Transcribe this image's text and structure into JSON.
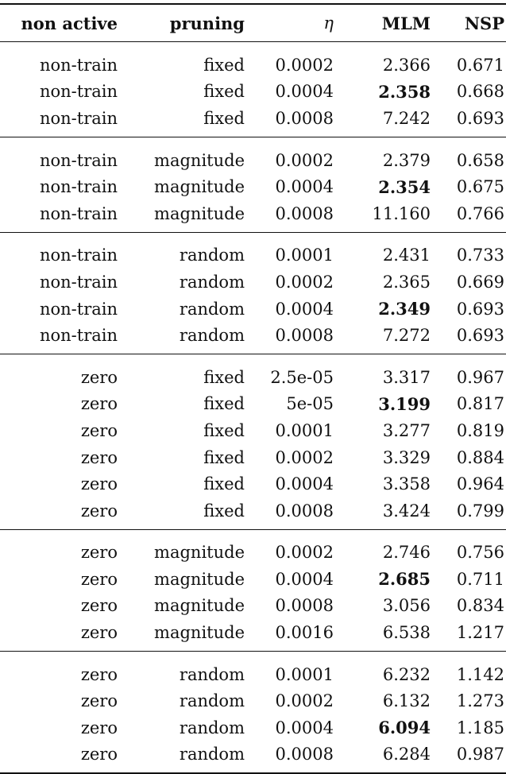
{
  "headers": [
    "non active",
    "pruning",
    "η",
    "MLM",
    "NSP"
  ],
  "groups": [
    {
      "rows": [
        [
          "non-train",
          "fixed",
          "0.0002",
          "2.366",
          "0.671"
        ],
        [
          "non-train",
          "fixed",
          "0.0004",
          "2.358",
          "0.668"
        ],
        [
          "non-train",
          "fixed",
          "0.0008",
          "7.242",
          "0.693"
        ]
      ],
      "best_row": 1
    },
    {
      "rows": [
        [
          "non-train",
          "magnitude",
          "0.0002",
          "2.379",
          "0.658"
        ],
        [
          "non-train",
          "magnitude",
          "0.0004",
          "2.354",
          "0.675"
        ],
        [
          "non-train",
          "magnitude",
          "0.0008",
          "11.160",
          "0.766"
        ]
      ],
      "best_row": 1
    },
    {
      "rows": [
        [
          "non-train",
          "random",
          "0.0001",
          "2.431",
          "0.733"
        ],
        [
          "non-train",
          "random",
          "0.0002",
          "2.365",
          "0.669"
        ],
        [
          "non-train",
          "random",
          "0.0004",
          "2.349",
          "0.693"
        ],
        [
          "non-train",
          "random",
          "0.0008",
          "7.272",
          "0.693"
        ]
      ],
      "best_row": 2
    },
    {
      "rows": [
        [
          "zero",
          "fixed",
          "2.5e-05",
          "3.317",
          "0.967"
        ],
        [
          "zero",
          "fixed",
          "5e-05",
          "3.199",
          "0.817"
        ],
        [
          "zero",
          "fixed",
          "0.0001",
          "3.277",
          "0.819"
        ],
        [
          "zero",
          "fixed",
          "0.0002",
          "3.329",
          "0.884"
        ],
        [
          "zero",
          "fixed",
          "0.0004",
          "3.358",
          "0.964"
        ],
        [
          "zero",
          "fixed",
          "0.0008",
          "3.424",
          "0.799"
        ]
      ],
      "best_row": 1
    },
    {
      "rows": [
        [
          "zero",
          "magnitude",
          "0.0002",
          "2.746",
          "0.756"
        ],
        [
          "zero",
          "magnitude",
          "0.0004",
          "2.685",
          "0.711"
        ],
        [
          "zero",
          "magnitude",
          "0.0008",
          "3.056",
          "0.834"
        ],
        [
          "zero",
          "magnitude",
          "0.0016",
          "6.538",
          "1.217"
        ]
      ],
      "best_row": 1
    },
    {
      "rows": [
        [
          "zero",
          "random",
          "0.0001",
          "6.232",
          "1.142"
        ],
        [
          "zero",
          "random",
          "0.0002",
          "6.132",
          "1.273"
        ],
        [
          "zero",
          "random",
          "0.0004",
          "6.094",
          "1.185"
        ],
        [
          "zero",
          "random",
          "0.0008",
          "6.284",
          "0.987"
        ]
      ],
      "best_row": 2
    }
  ],
  "best_column": 3
}
